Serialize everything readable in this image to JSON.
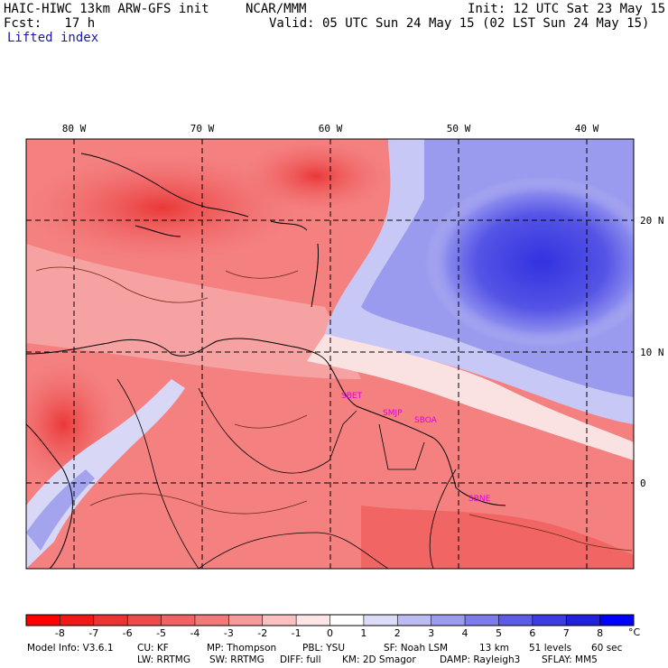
{
  "header": {
    "model": "HAIC-HIWC 13km ARW-GFS init",
    "org": "NCAR/MMM",
    "init": "Init: 12 UTC Sat 23 May 15",
    "fcst": "Fcst:   17 h",
    "valid": "Valid: 05 UTC Sun 24 May 15 (02 LST Sun 24 May 15)",
    "field": "Lifted index"
  },
  "map": {
    "lon_labels": [
      "80 W",
      "70 W",
      "60 W",
      "50 W",
      "40 W"
    ],
    "lat_labels": [
      "20 N",
      "10 N",
      "0"
    ],
    "stations": [
      "SBET",
      "SMJP",
      "SBOA",
      "SBNE"
    ],
    "station_color": "#e000e0"
  },
  "colorbar": {
    "ticks": [
      "-8",
      "-7",
      "-6",
      "-5",
      "-4",
      "-3",
      "-2",
      "-1",
      "0",
      "1",
      "2",
      "3",
      "4",
      "5",
      "6",
      "7",
      "8"
    ],
    "unit": "°C",
    "colors": [
      "#ff0000",
      "#f01818",
      "#ec3434",
      "#ef4a4a",
      "#f26262",
      "#f47a7a",
      "#f79a9a",
      "#fbc0c0",
      "#ffe6e6",
      "#ffffff",
      "#dcdcf8",
      "#bcbcf2",
      "#9c9cee",
      "#7c7cea",
      "#5c5ce6",
      "#3c3ce2",
      "#2222dc",
      "#0000ff"
    ]
  },
  "footer": {
    "line1": [
      "Model Info: V3.6.1",
      "CU: KF",
      "MP: Thompson",
      "PBL: YSU",
      "SF: Noah LSM",
      "13 km",
      "51 levels",
      "60 sec"
    ],
    "line2": [
      "LW: RRTMG",
      "SW: RRTMG",
      "DIFF: full",
      "KM: 2D Smagor",
      "DAMP: Rayleigh3",
      "SFLAY: MM5"
    ]
  }
}
